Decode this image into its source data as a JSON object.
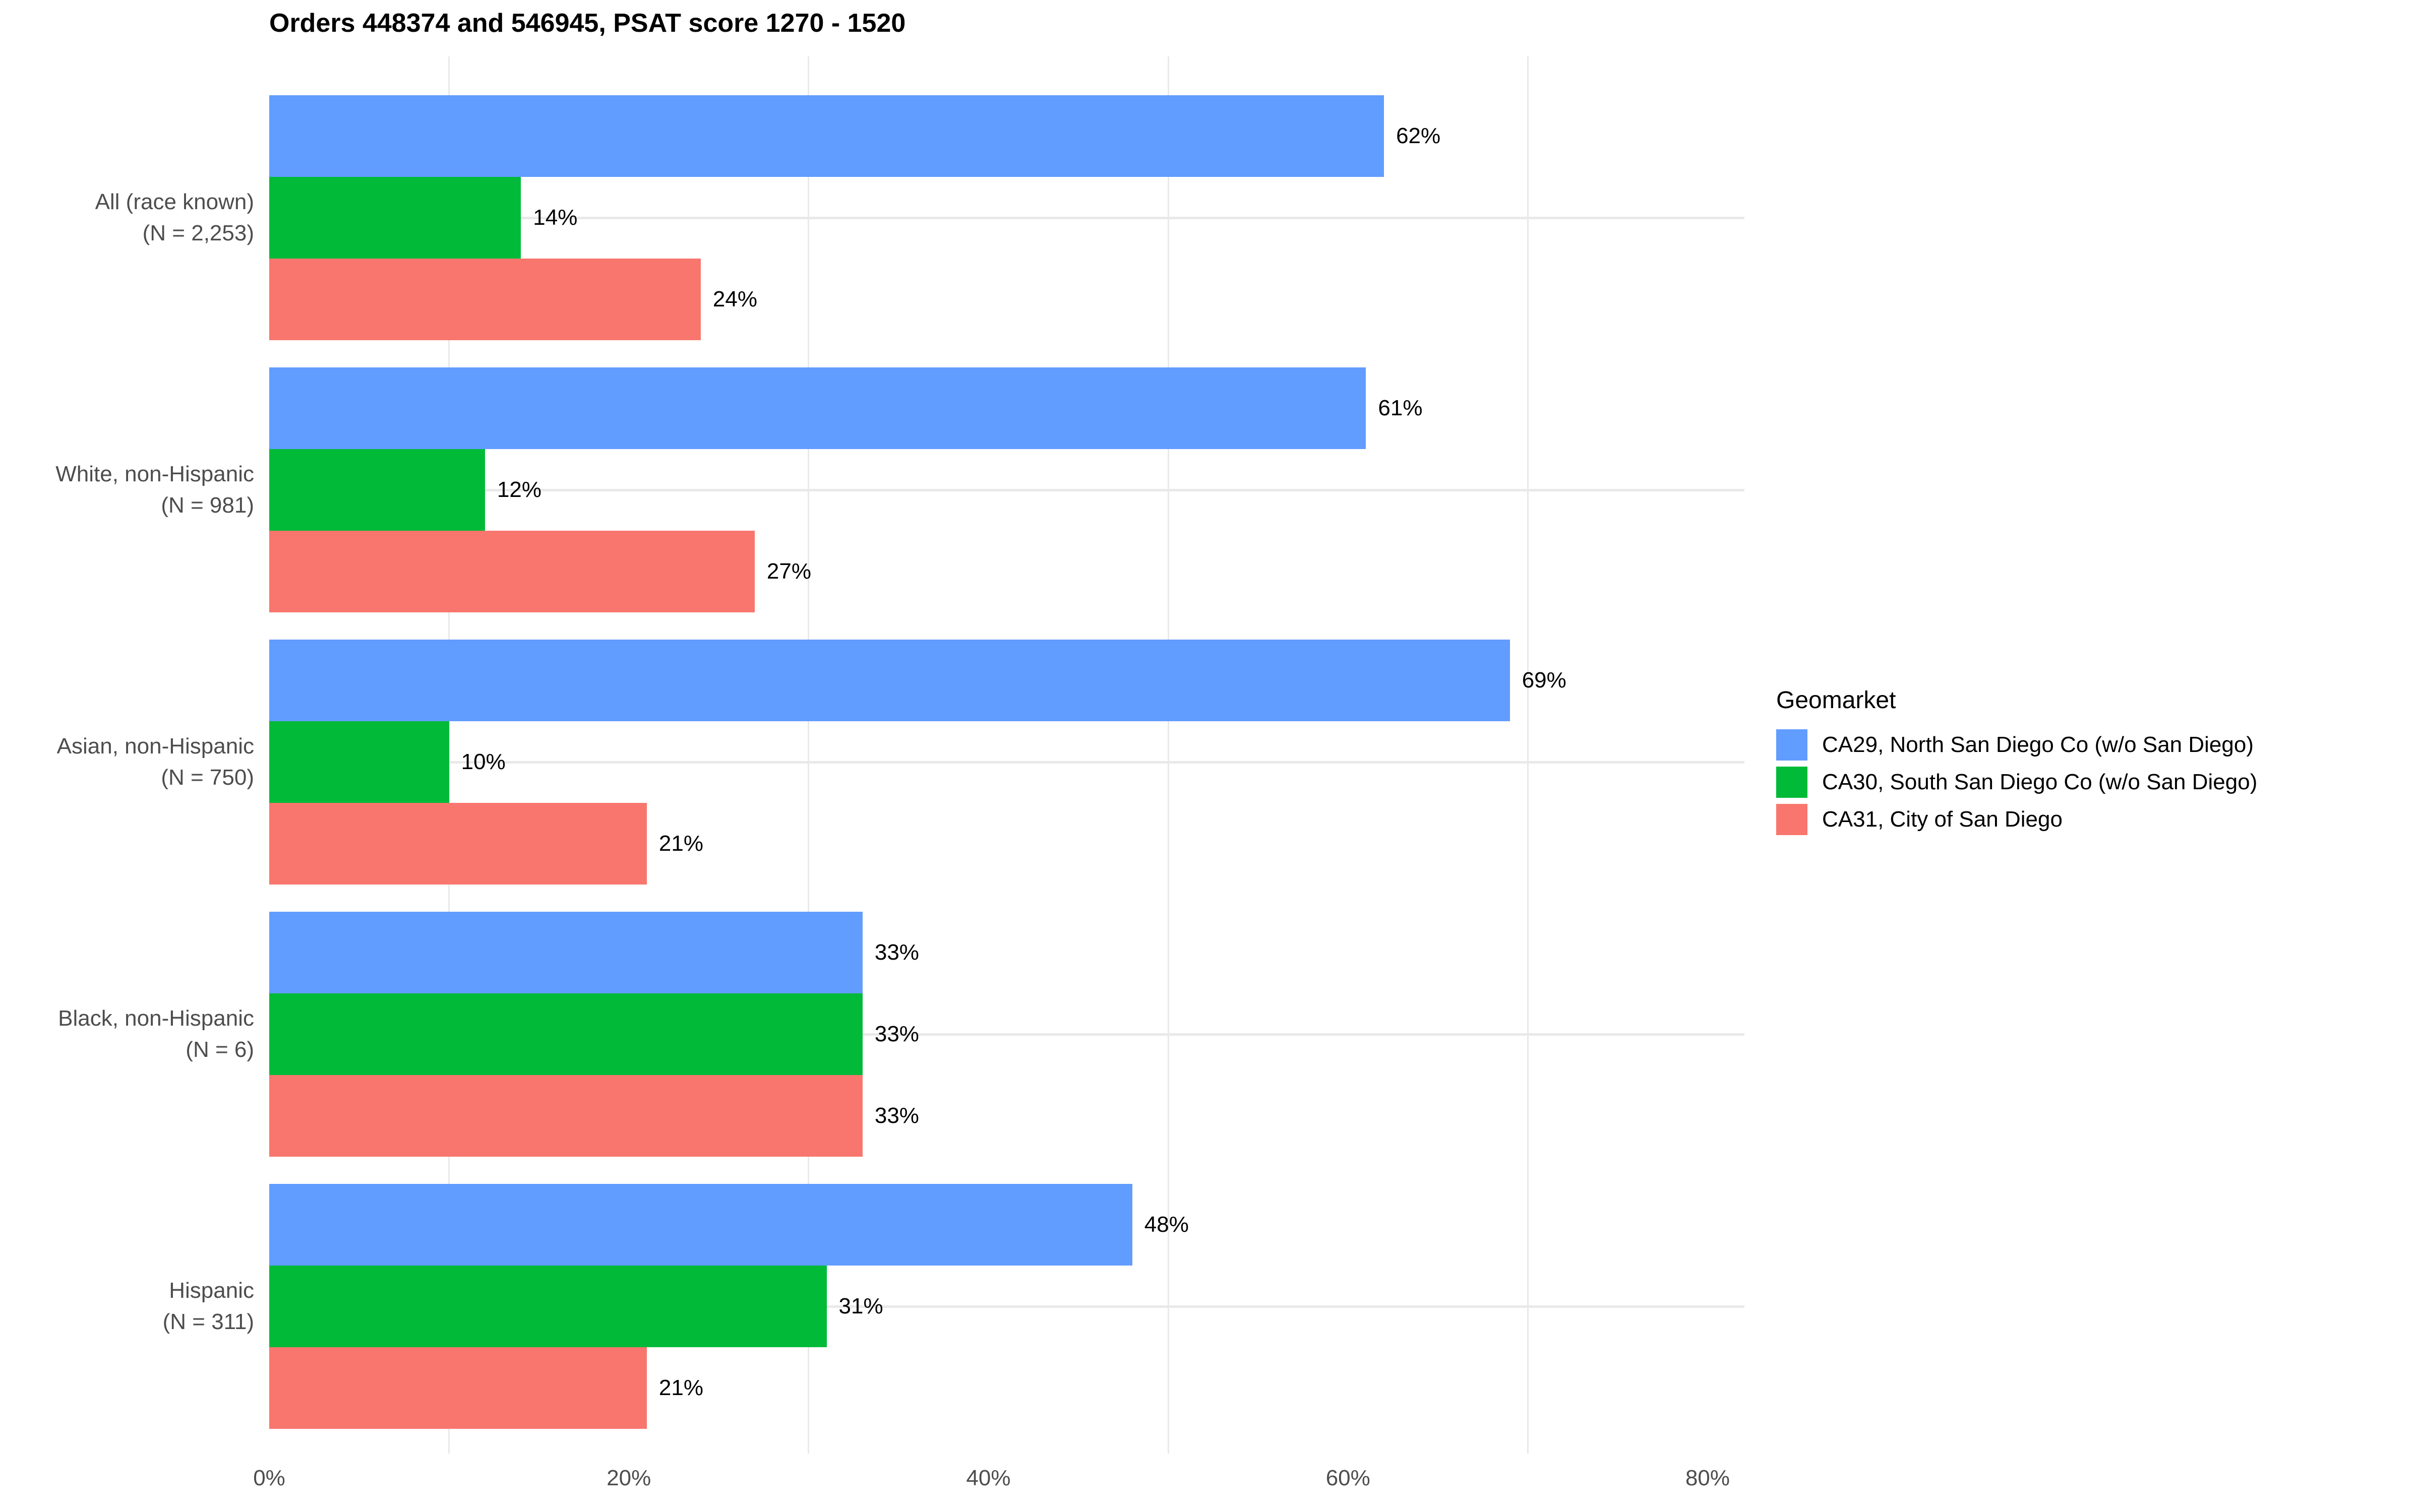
{
  "chart_data": {
    "type": "bar",
    "orientation": "horizontal",
    "title": "Orders 448374 and 546945, PSAT score 1270 - 1520",
    "categories": [
      {
        "lines": [
          "All (race known)",
          "(N = 2,253)"
        ]
      },
      {
        "lines": [
          "White, non-Hispanic",
          "(N = 981)"
        ]
      },
      {
        "lines": [
          "Asian, non-Hispanic",
          "(N = 750)"
        ]
      },
      {
        "lines": [
          "Black, non-Hispanic",
          "(N = 6)"
        ]
      },
      {
        "lines": [
          "Hispanic",
          "(N = 311)"
        ]
      }
    ],
    "series": [
      {
        "name": "CA29, North San Diego Co (w/o San Diego)",
        "color": "#619CFF",
        "values": [
          62,
          61,
          69,
          33,
          48
        ]
      },
      {
        "name": "CA30, South San Diego Co (w/o San Diego)",
        "color": "#00BA38",
        "values": [
          14,
          12,
          10,
          33,
          31
        ]
      },
      {
        "name": "CA31, City of San Diego",
        "color": "#F8766D",
        "values": [
          24,
          27,
          21,
          33,
          21
        ]
      }
    ],
    "value_suffix": "%",
    "value_labels": [
      [
        "62%",
        "61%",
        "69%",
        "33%",
        "48%"
      ],
      [
        "14%",
        "12%",
        "10%",
        "33%",
        "31%"
      ],
      [
        "24%",
        "27%",
        "21%",
        "33%",
        "21%"
      ]
    ],
    "xlabel": "",
    "ylabel": "",
    "xlim": [
      0,
      82
    ],
    "x_ticks": [
      {
        "value": 0,
        "label": "0%"
      },
      {
        "value": 20,
        "label": "20%"
      },
      {
        "value": 40,
        "label": "40%"
      },
      {
        "value": 60,
        "label": "60%"
      },
      {
        "value": 80,
        "label": "80%"
      }
    ],
    "x_minor_gridlines": [
      10,
      30,
      50,
      70
    ],
    "grid": {
      "vertical_minor": true,
      "horizontal_category_centers": true,
      "major_vertical": false
    },
    "legend_title": "Geomarket",
    "legend_position": "right",
    "colors": {
      "grid": "#E9E9E9",
      "axis_text": "#4D4D4D",
      "value_text": "#000000",
      "title_text": "#000000",
      "background": "#FFFFFF"
    }
  }
}
